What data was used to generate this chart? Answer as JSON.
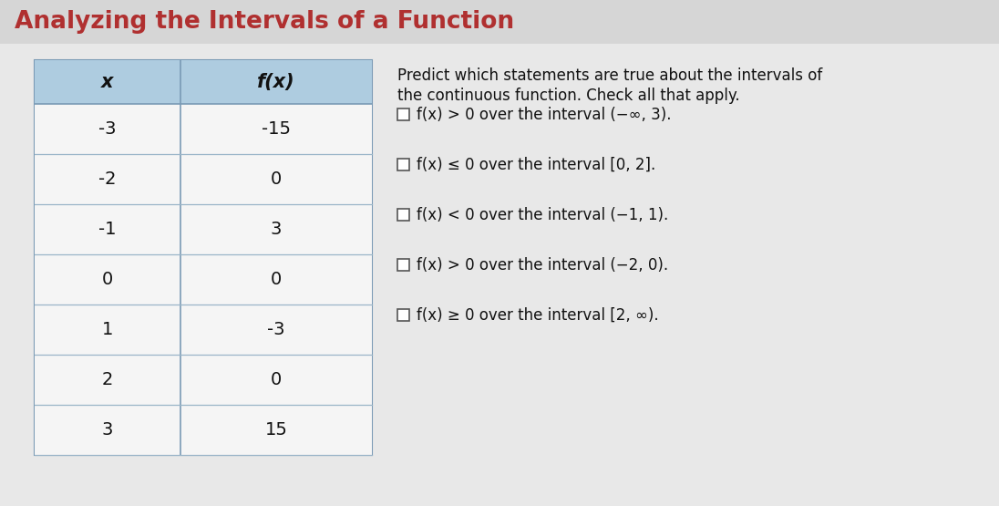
{
  "title": "Analyzing the Intervals of a Function",
  "title_color": "#b03030",
  "title_bg_color": "#d6d6d6",
  "content_bg_color": "#e8e8e8",
  "table_bg_color": "#f5f5f5",
  "header_bg_color": "#aecce0",
  "table_x": [
    "-3",
    "-2",
    "-1",
    "0",
    "1",
    "2",
    "3"
  ],
  "table_fx": [
    "-15",
    "0",
    "3",
    "0",
    "-3",
    "0",
    "15"
  ],
  "col_headers": [
    "x",
    "f(x)"
  ],
  "instructions_line1": "Predict which statements are true about the intervals of",
  "instructions_line2": "the continuous function. Check all that apply.",
  "checkboxes": [
    "f(x) > 0 over the interval (−∞, 3).",
    "f(x) ≤ 0 over the interval [0, 2].",
    "f(x) < 0 over the interval (−1, 1).",
    "f(x) > 0 over the interval (−2, 0).",
    "f(x) ≥ 0 over the interval [2, ∞)."
  ],
  "checkbox_checked": [
    false,
    false,
    false,
    false,
    false
  ],
  "font_size_title": 19,
  "font_size_table": 14,
  "font_size_text": 12,
  "fig_width": 10.96,
  "fig_height": 5.55,
  "dpi": 100
}
